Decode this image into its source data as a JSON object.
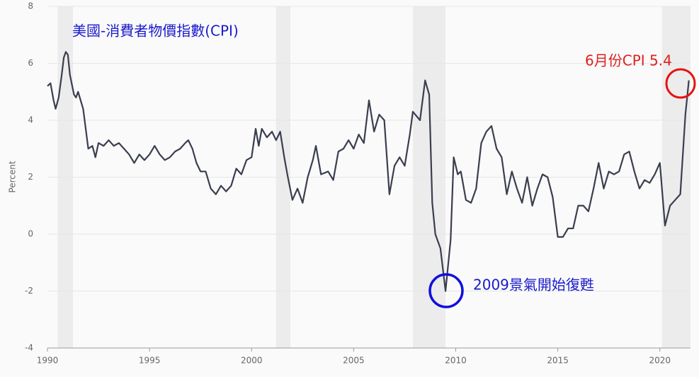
{
  "chart_data": {
    "type": "line",
    "title": "美國-消費者物價指數(CPI)",
    "y_label": "Percent",
    "annotations": [
      "6月份CPI 5.4",
      "2009景氣開始復甦"
    ],
    "xlim": [
      1990,
      2021.5
    ],
    "xticks": [
      1990,
      1995,
      2000,
      2005,
      2010,
      2015,
      2020
    ],
    "ylim": [
      -4,
      8
    ],
    "yticks": [
      -4,
      -2,
      0,
      2,
      4,
      6,
      8
    ],
    "grid": true,
    "recessions": [
      [
        1990.5,
        1991.25
      ],
      [
        2001.2,
        2001.9
      ],
      [
        2007.9,
        2009.5
      ],
      [
        2020.1,
        2021.5
      ]
    ],
    "x": [
      1990.0,
      1990.15,
      1990.3,
      1990.4,
      1990.55,
      1990.7,
      1990.8,
      1990.9,
      1991.0,
      1991.1,
      1991.3,
      1991.4,
      1991.5,
      1991.75,
      1992.0,
      1992.2,
      1992.35,
      1992.5,
      1992.75,
      1993.0,
      1993.25,
      1993.5,
      1993.75,
      1994.0,
      1994.25,
      1994.5,
      1994.75,
      1995.0,
      1995.25,
      1995.5,
      1995.75,
      1996.0,
      1996.25,
      1996.5,
      1996.75,
      1996.9,
      1997.1,
      1997.3,
      1997.5,
      1997.75,
      1998.0,
      1998.25,
      1998.5,
      1998.75,
      1999.0,
      1999.25,
      1999.5,
      1999.75,
      2000.0,
      2000.2,
      2000.35,
      2000.5,
      2000.75,
      2001.0,
      2001.2,
      2001.4,
      2001.6,
      2001.75,
      2002.0,
      2002.25,
      2002.5,
      2002.75,
      2003.0,
      2003.15,
      2003.4,
      2003.75,
      2004.0,
      2004.25,
      2004.5,
      2004.75,
      2005.0,
      2005.25,
      2005.5,
      2005.75,
      2006.0,
      2006.25,
      2006.5,
      2006.75,
      2007.0,
      2007.25,
      2007.5,
      2007.75,
      2007.9,
      2008.25,
      2008.5,
      2008.7,
      2008.85,
      2009.0,
      2009.25,
      2009.5,
      2009.75,
      2009.9,
      2010.1,
      2010.25,
      2010.5,
      2010.75,
      2011.0,
      2011.25,
      2011.5,
      2011.75,
      2012.0,
      2012.25,
      2012.5,
      2012.75,
      2013.0,
      2013.25,
      2013.5,
      2013.75,
      2014.0,
      2014.25,
      2014.5,
      2014.75,
      2015.0,
      2015.25,
      2015.5,
      2015.75,
      2016.0,
      2016.25,
      2016.5,
      2016.75,
      2017.0,
      2017.25,
      2017.5,
      2017.75,
      2018.0,
      2018.25,
      2018.5,
      2018.75,
      2019.0,
      2019.25,
      2019.5,
      2019.75,
      2020.0,
      2020.25,
      2020.5,
      2020.75,
      2021.0,
      2021.25,
      2021.42
    ],
    "series": [
      {
        "color": "#3a3e4f",
        "values": [
          5.2,
          5.3,
          4.7,
          4.4,
          4.8,
          5.6,
          6.2,
          6.4,
          6.3,
          5.6,
          4.9,
          4.8,
          5.0,
          4.4,
          3.0,
          3.1,
          2.7,
          3.2,
          3.1,
          3.3,
          3.1,
          3.2,
          3.0,
          2.8,
          2.5,
          2.8,
          2.6,
          2.8,
          3.1,
          2.8,
          2.6,
          2.7,
          2.9,
          3.0,
          3.2,
          3.3,
          3.0,
          2.5,
          2.2,
          2.2,
          1.6,
          1.4,
          1.7,
          1.5,
          1.7,
          2.3,
          2.1,
          2.6,
          2.7,
          3.7,
          3.1,
          3.7,
          3.4,
          3.6,
          3.3,
          3.6,
          2.7,
          2.1,
          1.2,
          1.6,
          1.1,
          2.0,
          2.6,
          3.1,
          2.1,
          2.2,
          1.9,
          2.9,
          3.0,
          3.3,
          3.0,
          3.5,
          3.2,
          4.7,
          3.6,
          4.2,
          4.0,
          1.4,
          2.4,
          2.7,
          2.4,
          3.5,
          4.3,
          4.0,
          5.4,
          4.9,
          1.1,
          0.0,
          -0.5,
          -2.0,
          -0.2,
          2.7,
          2.1,
          2.2,
          1.2,
          1.1,
          1.6,
          3.2,
          3.6,
          3.8,
          3.0,
          2.7,
          1.4,
          2.2,
          1.6,
          1.1,
          2.0,
          1.0,
          1.6,
          2.1,
          2.0,
          1.3,
          -0.1,
          -0.1,
          0.2,
          0.2,
          1.0,
          1.0,
          0.8,
          1.6,
          2.5,
          1.6,
          2.2,
          2.1,
          2.2,
          2.8,
          2.9,
          2.2,
          1.6,
          1.9,
          1.8,
          2.1,
          2.5,
          0.3,
          1.0,
          1.2,
          1.4,
          4.2,
          5.4
        ]
      }
    ]
  }
}
